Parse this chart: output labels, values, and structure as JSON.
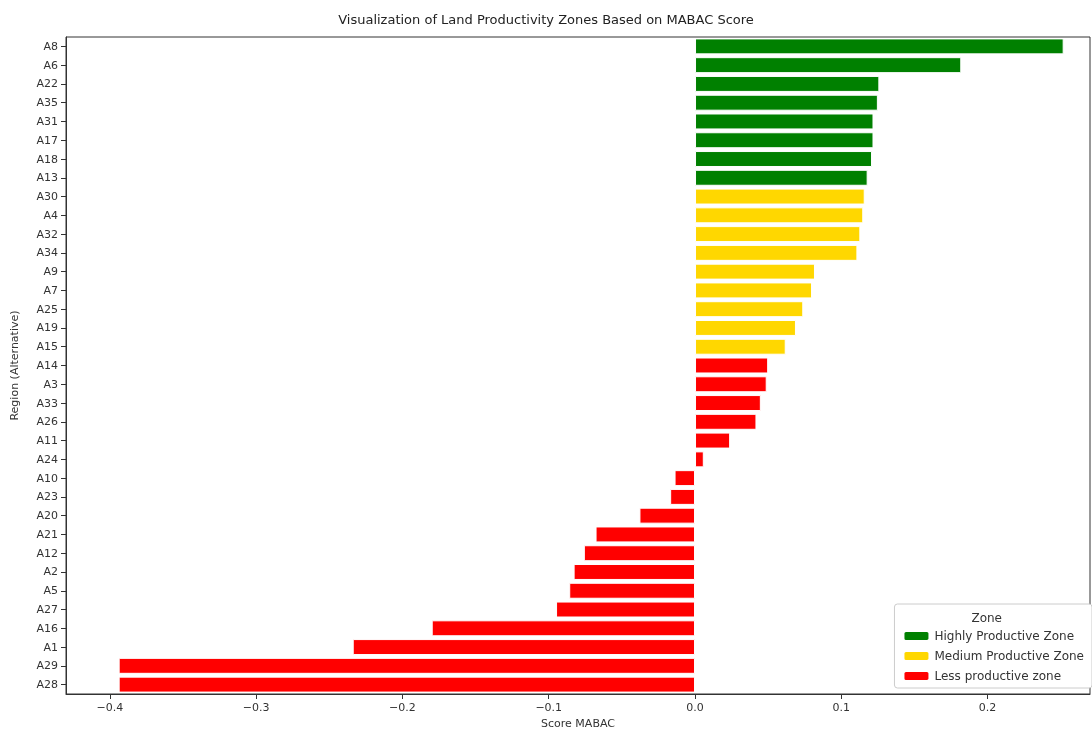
{
  "chart_data": {
    "type": "bar",
    "orientation": "horizontal",
    "title": "Visualization of Land Productivity Zones Based on MABAC Score",
    "xlabel": "Score MABAC",
    "ylabel": "Region (Alternative)",
    "legend_title": "Zone",
    "legend": "bottom right",
    "categories": [
      "A8",
      "A6",
      "A22",
      "A35",
      "A31",
      "A17",
      "A18",
      "A13",
      "A30",
      "A4",
      "A32",
      "A34",
      "A9",
      "A7",
      "A25",
      "A19",
      "A15",
      "A14",
      "A3",
      "A33",
      "A26",
      "A11",
      "A24",
      "A10",
      "A23",
      "A20",
      "A21",
      "A12",
      "A2",
      "A5",
      "A27",
      "A16",
      "A1",
      "A29",
      "A28"
    ],
    "series": [
      {
        "name": "Highly Productive Zone",
        "color": "#008000",
        "values": [
          0.252,
          0.182,
          0.126,
          0.125,
          0.122,
          0.122,
          0.121,
          0.118,
          null,
          null,
          null,
          null,
          null,
          null,
          null,
          null,
          null,
          null,
          null,
          null,
          null,
          null,
          null,
          null,
          null,
          null,
          null,
          null,
          null,
          null,
          null,
          null,
          null,
          null,
          null
        ]
      },
      {
        "name": "Medium Productive Zone",
        "color": "#ffd700",
        "values": [
          null,
          null,
          null,
          null,
          null,
          null,
          null,
          null,
          0.116,
          0.115,
          0.113,
          0.111,
          0.082,
          0.08,
          0.074,
          0.069,
          0.062,
          null,
          null,
          null,
          null,
          null,
          null,
          null,
          null,
          null,
          null,
          null,
          null,
          null,
          null,
          null,
          null,
          null,
          null
        ]
      },
      {
        "name": "Less productive zone",
        "color": "#ff0000",
        "values": [
          null,
          null,
          null,
          null,
          null,
          null,
          null,
          null,
          null,
          null,
          null,
          null,
          null,
          null,
          null,
          null,
          null,
          0.05,
          0.049,
          0.045,
          0.042,
          0.024,
          0.006,
          -0.014,
          -0.017,
          -0.038,
          -0.068,
          -0.076,
          -0.083,
          -0.086,
          -0.095,
          -0.18,
          -0.234,
          -0.394,
          -0.394
        ]
      }
    ],
    "xlim": [
      -0.43,
      0.27
    ],
    "xticks": [
      {
        "value": -0.4,
        "label": "−0.4"
      },
      {
        "value": -0.3,
        "label": "−0.3"
      },
      {
        "value": -0.2,
        "label": "−0.2"
      },
      {
        "value": -0.1,
        "label": "−0.1"
      },
      {
        "value": 0,
        "label": "0.0"
      },
      {
        "value": 0.1,
        "label": "0.1"
      },
      {
        "value": 0.2,
        "label": "0.2"
      }
    ],
    "grid": false
  }
}
